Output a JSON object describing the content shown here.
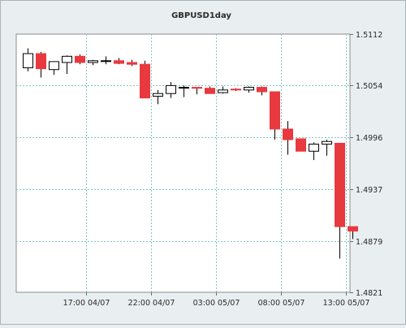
{
  "chart_data": {
    "type": "candlestick",
    "title": "GBPUSD1day",
    "xlabel": "",
    "ylabel": "",
    "ylim": [
      1.4821,
      1.5112
    ],
    "y_ticks": [
      "1.5112",
      "1.5054",
      "1.4996",
      "1.4937",
      "1.4879",
      "1.4821"
    ],
    "x_tick_labels": [
      "17:00 04/07",
      "22:00 04/07",
      "03:00 05/07",
      "08:00 05/07",
      "13:00 05/07"
    ],
    "x_tick_after_candle": [
      4,
      9,
      14,
      19,
      24
    ],
    "grid": true,
    "legend": "none",
    "colors": {
      "up_fill": "#ffffff",
      "down_fill": "#e8393f",
      "wick": "#000000",
      "grid": "#7fc8c8",
      "background": "#e9eef1",
      "plot_background": "#ffffff"
    },
    "candles": [
      {
        "open": 1.5074,
        "high": 1.5096,
        "low": 1.507,
        "close": 1.509
      },
      {
        "open": 1.509,
        "high": 1.5092,
        "low": 1.5063,
        "close": 1.5073
      },
      {
        "open": 1.5072,
        "high": 1.508,
        "low": 1.5066,
        "close": 1.5081
      },
      {
        "open": 1.508,
        "high": 1.5088,
        "low": 1.5067,
        "close": 1.5087
      },
      {
        "open": 1.5087,
        "high": 1.5089,
        "low": 1.5078,
        "close": 1.508
      },
      {
        "open": 1.508,
        "high": 1.5083,
        "low": 1.5077,
        "close": 1.5082
      },
      {
        "open": 1.5082,
        "high": 1.5087,
        "low": 1.5078,
        "close": 1.5082
      },
      {
        "open": 1.5082,
        "high": 1.5085,
        "low": 1.5078,
        "close": 1.5079
      },
      {
        "open": 1.508,
        "high": 1.5083,
        "low": 1.5076,
        "close": 1.5078
      },
      {
        "open": 1.5078,
        "high": 1.5082,
        "low": 1.5041,
        "close": 1.504
      },
      {
        "open": 1.5042,
        "high": 1.5049,
        "low": 1.5033,
        "close": 1.5045
      },
      {
        "open": 1.5045,
        "high": 1.5058,
        "low": 1.504,
        "close": 1.5054
      },
      {
        "open": 1.5052,
        "high": 1.5054,
        "low": 1.5041,
        "close": 1.5052
      },
      {
        "open": 1.5052,
        "high": 1.5052,
        "low": 1.5044,
        "close": 1.5051
      },
      {
        "open": 1.5051,
        "high": 1.5053,
        "low": 1.5045,
        "close": 1.5045
      },
      {
        "open": 1.5046,
        "high": 1.5053,
        "low": 1.5045,
        "close": 1.5049
      },
      {
        "open": 1.505,
        "high": 1.5051,
        "low": 1.5048,
        "close": 1.5049
      },
      {
        "open": 1.5049,
        "high": 1.5053,
        "low": 1.5046,
        "close": 1.5052
      },
      {
        "open": 1.5052,
        "high": 1.5053,
        "low": 1.5043,
        "close": 1.5047
      },
      {
        "open": 1.5047,
        "high": 1.5047,
        "low": 1.4993,
        "close": 1.5005
      },
      {
        "open": 1.5005,
        "high": 1.5014,
        "low": 1.4976,
        "close": 1.4993
      },
      {
        "open": 1.4994,
        "high": 1.4994,
        "low": 1.4981,
        "close": 1.498
      },
      {
        "open": 1.498,
        "high": 1.499,
        "low": 1.497,
        "close": 1.4988
      },
      {
        "open": 1.4988,
        "high": 1.4993,
        "low": 1.4975,
        "close": 1.4991
      },
      {
        "open": 1.4989,
        "high": 1.4989,
        "low": 1.4859,
        "close": 1.4895
      },
      {
        "open": 1.4895,
        "high": 1.4895,
        "low": 1.4881,
        "close": 1.489
      }
    ]
  }
}
